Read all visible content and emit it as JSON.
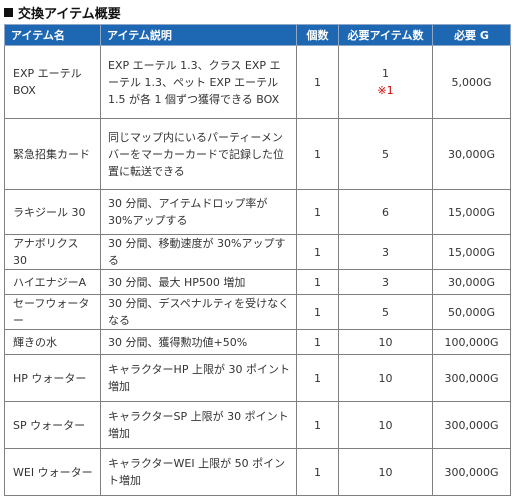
{
  "section_title": "交換アイテム概要",
  "headers": {
    "name": "アイテム名",
    "desc": "アイテム説明",
    "count": "個数",
    "required": "必要アイテム数",
    "price": "必要 G"
  },
  "rows": [
    {
      "name": "EXP エーテル BOX",
      "desc": "EXP エーテル 1.3、クラス EXP エーテル 1.3、ペット EXP エーテル 1.5 が各 1 個ずつ獲得できる BOX",
      "count": "1",
      "required": "1",
      "required_note": "※1",
      "price": "5,000G"
    },
    {
      "name": "緊急招集カード",
      "desc": "同じマップ内にいるパーティーメンバーをマーカーカードで記録した位置に転送できる",
      "count": "1",
      "required": "5",
      "price": "30,000G"
    },
    {
      "name": "ラキジール 30",
      "desc": "30 分間、アイテムドロップ率が 30%アップする",
      "count": "1",
      "required": "6",
      "price": "15,000G"
    },
    {
      "name": "アナボリクス 30",
      "desc": "30 分間、移動速度が 30%アップする",
      "count": "1",
      "required": "3",
      "price": "15,000G"
    },
    {
      "name": "ハイエナジーA",
      "desc": "30 分間、最大 HP500 増加",
      "count": "1",
      "required": "3",
      "price": "30,000G"
    },
    {
      "name": "セーフウォーター",
      "desc": "30 分間、デスペナルティを受けなくなる",
      "count": "1",
      "required": "5",
      "price": "50,000G"
    },
    {
      "name": "輝きの水",
      "desc": "30 分間、獲得勲功値+50%",
      "count": "1",
      "required": "10",
      "price": "100,000G"
    },
    {
      "name": "HP ウォーター",
      "desc": "キャラクターHP 上限が 30 ポイント増加",
      "count": "1",
      "required": "10",
      "price": "300,000G"
    },
    {
      "name": "SP ウォーター",
      "desc": "キャラクターSP 上限が 30 ポイント増加",
      "count": "1",
      "required": "10",
      "price": "300,000G"
    },
    {
      "name": "WEI ウォーター",
      "desc": "キャラクターWEI 上限が 50 ポイント増加",
      "count": "1",
      "required": "10",
      "price": "300,000G"
    }
  ]
}
